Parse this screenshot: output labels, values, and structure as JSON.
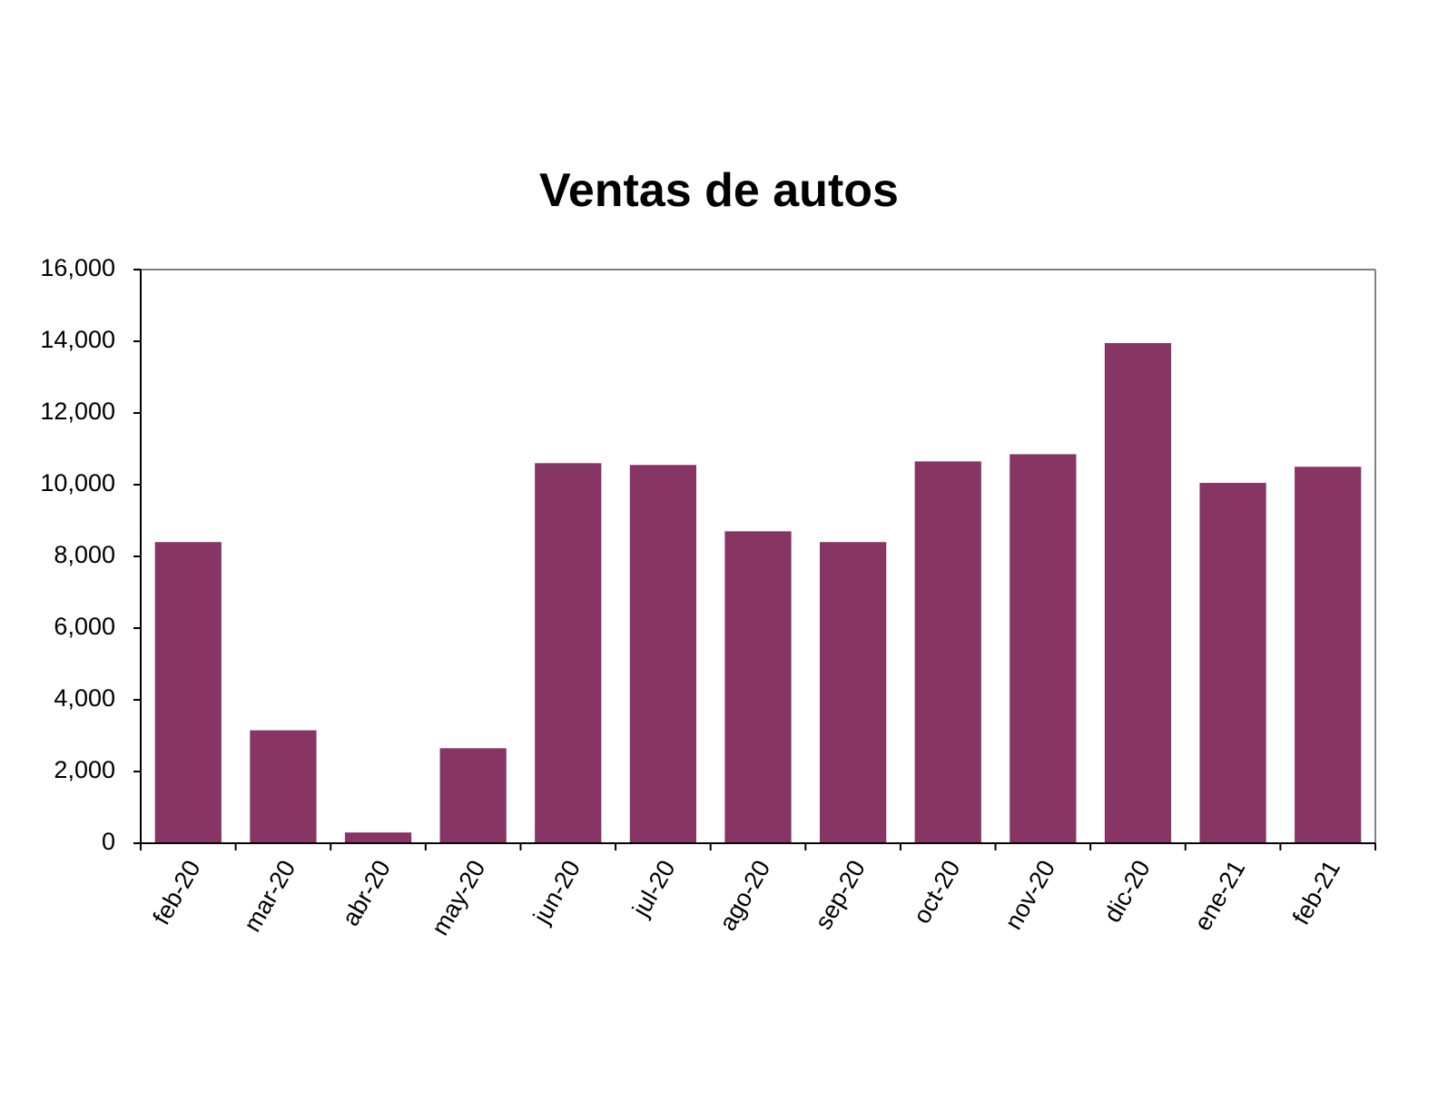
{
  "chart_data": {
    "type": "bar",
    "title": "Ventas de autos",
    "xlabel": "",
    "ylabel": "",
    "categories": [
      "feb-20",
      "mar-20",
      "abr-20",
      "may-20",
      "jun-20",
      "jul-20",
      "ago-20",
      "sep-20",
      "oct-20",
      "nov-20",
      "dic-20",
      "ene-21",
      "feb-21"
    ],
    "values": [
      8400,
      3150,
      300,
      2650,
      10600,
      10550,
      8700,
      8400,
      10650,
      10850,
      13950,
      10050,
      10500
    ],
    "ylim": [
      0,
      16000
    ],
    "yticks": [
      0,
      2000,
      4000,
      6000,
      8000,
      10000,
      12000,
      14000,
      16000
    ],
    "ytick_labels": [
      "0",
      "2,000",
      "4,000",
      "6,000",
      "8,000",
      "10,000",
      "12,000",
      "14,000",
      "16,000"
    ],
    "grid": false,
    "legend": "none",
    "bar_color": "#863564",
    "axis_color": "#000000",
    "frame_color": "#808080"
  }
}
